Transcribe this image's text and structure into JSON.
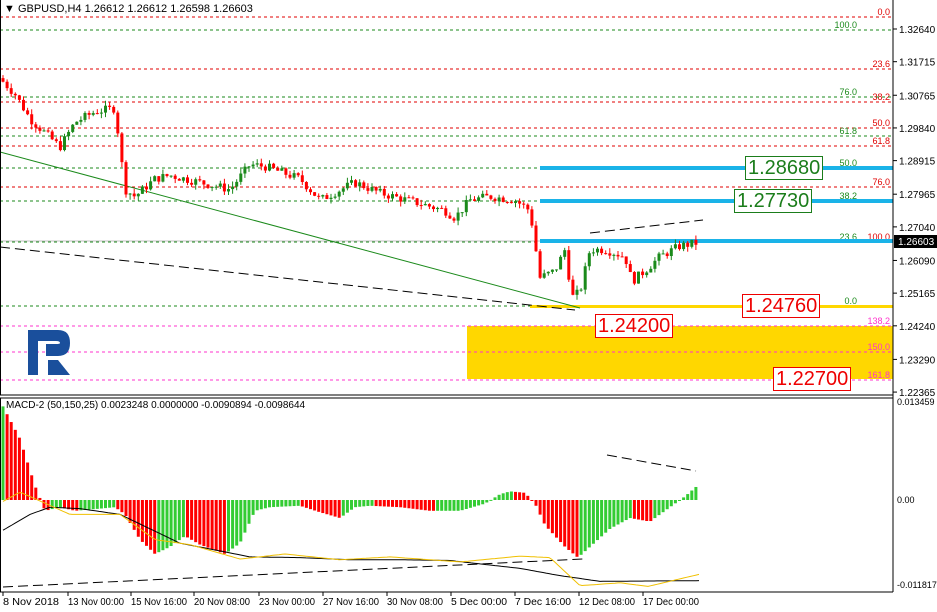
{
  "header": {
    "symbol": "GBPUSD,H4",
    "values": "1.26612 1.26612 1.26598 1.26603"
  },
  "macd_header": "MACD-2 (50,150,25) 0.0023248 0.0000000 -0.0090894 -0.0098644",
  "colors": {
    "bull": "#1b8a1b",
    "bear": "#ff0000",
    "hist_up": "#33cc33",
    "hist_down": "#ff0000",
    "level_blue": "#1ab3e8",
    "zone": "#ffd700",
    "fib_red": "#e00000",
    "fib_green": "#1b8a1b",
    "fib_magenta": "#ff33cc"
  },
  "level_labels": {
    "l1": "1.28680",
    "l2": "1.27730",
    "l3": "1.24760",
    "l4": "1.24200",
    "l5": "1.22700"
  },
  "fib_red": [
    "0.0",
    "23.6",
    "38.2",
    "50.0",
    "61.8",
    "76.0",
    "100.0"
  ],
  "fib_green": [
    "100.0",
    "76.0",
    "61.8",
    "50.0",
    "38.2",
    "23.6",
    "0.0"
  ],
  "fib_magenta": [
    "138.2",
    "150.0",
    "161.8"
  ],
  "chart_data": [
    {
      "type": "candlestick",
      "title": "GBPUSD,H4",
      "price_axis_ticks": [
        "1.32640",
        "1.31715",
        "1.30765",
        "1.29840",
        "1.28915",
        "1.27965",
        "1.27040",
        "1.26090",
        "1.25165",
        "1.24240",
        "1.23290",
        "1.22365"
      ],
      "current_price": "1.26603",
      "ylim": [
        1.222,
        1.331
      ],
      "time_axis_ticks": [
        "8 Nov 2018",
        "13 Nov 00:00",
        "15 Nov 16:00",
        "20 Nov 08:00",
        "23 Nov 00:00",
        "27 Nov 16:00",
        "30 Nov 08:00",
        "5 Dec 00:00",
        "7 Dec 16:00",
        "12 Dec 08:00",
        "17 Dec 00:00"
      ],
      "close_samples": [
        1.3115,
        1.308,
        1.301,
        1.297,
        1.293,
        1.3,
        1.303,
        1.304,
        1.281,
        1.279,
        1.284,
        1.285,
        1.283,
        1.281,
        1.288,
        1.2875,
        1.284,
        1.278,
        1.283,
        1.28,
        1.277,
        1.275,
        1.273,
        1.278,
        1.279,
        1.278,
        1.275,
        1.256,
        1.258,
        1.264,
        1.2505,
        1.252,
        1.264,
        1.264,
        1.262,
        1.255,
        1.258,
        1.262,
        1.265,
        1.266
      ]
    },
    {
      "type": "bar",
      "title": "MACD-2 (50,150,25)",
      "ylim": [
        -0.011817,
        0.013459
      ],
      "axis_ticks": [
        "0.013459",
        "0.00",
        "-0.011817"
      ],
      "histogram": [
        0.013,
        0.0085,
        0.002,
        -0.0015,
        -0.001,
        -0.0015,
        -0.0012,
        -0.001,
        -0.002,
        -0.0055,
        -0.0075,
        -0.0065,
        -0.005,
        -0.0062,
        -0.0075,
        -0.006,
        -0.0015,
        -0.001,
        -0.0008,
        -0.0017,
        -0.0025,
        -0.001,
        -0.0008,
        -0.001,
        -0.0015,
        -0.0015,
        -0.0005,
        0.0008,
        0.0012,
        0.001,
        -0.0005,
        -0.0035,
        -0.0065,
        -0.008,
        -0.0065,
        -0.004,
        -0.0025,
        -0.003,
        -0.001,
        0.0005,
        0.0023
      ],
      "signal_black": [
        -0.0042,
        -0.002,
        -0.001,
        -0.0012,
        -0.002,
        -0.004,
        -0.006,
        -0.0068,
        -0.0079,
        -0.008,
        -0.0083,
        -0.0083,
        -0.0084,
        -0.0095,
        -0.0105,
        -0.0113,
        -0.0112
      ],
      "line_yellow": [
        -0.0002,
        0.0011,
        -0.002,
        -0.002,
        -0.0055,
        -0.0062,
        -0.0082,
        -0.0075,
        -0.0083,
        -0.0079,
        -0.0086,
        -0.0078,
        -0.008,
        -0.0119,
        -0.0115,
        -0.012,
        -0.0103
      ]
    }
  ]
}
